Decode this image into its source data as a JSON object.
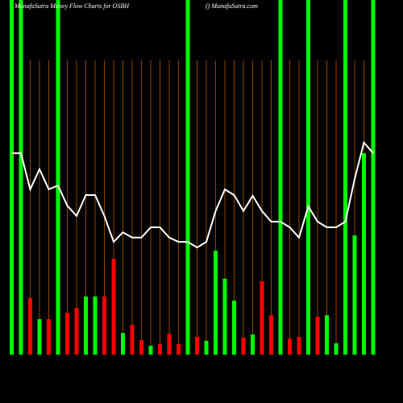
{
  "chart_data": {
    "type": "bar",
    "title": "MunafaSutra Money Flow Charts for OSBH",
    "subtitle": "() MunafaSutra.com",
    "categories": [
      null,
      null,
      null,
      null,
      null,
      null,
      null,
      null,
      null,
      null,
      null,
      null,
      null,
      null,
      null,
      null,
      null,
      null,
      null,
      null,
      null,
      null,
      null,
      null,
      null,
      null,
      null,
      null,
      null,
      null,
      null,
      null,
      null,
      null,
      null,
      null,
      null,
      null,
      null,
      null
    ],
    "ylim": [
      0,
      100
    ],
    "bars": {
      "values": [
        100,
        100,
        15.9,
        10,
        10,
        100,
        11.8,
        13.2,
        16.4,
        16.4,
        16.4,
        27.0,
        6.1,
        8.4,
        4.1,
        2.5,
        3.0,
        5.9,
        3.0,
        100,
        5.0,
        3.9,
        29.3,
        21.4,
        15.2,
        4.8,
        5.7,
        20.7,
        11.1,
        100,
        4.5,
        5.0,
        100,
        10.7,
        11.1,
        3.2,
        100,
        33.6,
        56.8,
        100
      ],
      "colors": [
        "#00ff00",
        "#00ff00",
        "#ff0000",
        "#00ff00",
        "#ff0000",
        "#00ff00",
        "#ff0000",
        "#ff0000",
        "#00ff00",
        "#00ff00",
        "#ff0000",
        "#ff0000",
        "#00ff00",
        "#ff0000",
        "#ff0000",
        "#00ff00",
        "#ff0000",
        "#ff0000",
        "#ff0000",
        "#00ff00",
        "#ff0000",
        "#00ff00",
        "#00ff00",
        "#00ff00",
        "#00ff00",
        "#ff0000",
        "#00ff00",
        "#ff0000",
        "#ff0000",
        "#00ff00",
        "#ff0000",
        "#ff0000",
        "#00ff00",
        "#ff0000",
        "#00ff00",
        "#00ff00",
        "#00ff00",
        "#00ff00",
        "#00ff00",
        "#00ff00"
      ]
    },
    "line": {
      "color": "#ffffff",
      "values": [
        56.8,
        56.8,
        46.6,
        52.3,
        46.6,
        47.7,
        42.0,
        39.1,
        45.0,
        45.0,
        39.1,
        31.8,
        34.5,
        33.0,
        33.0,
        35.9,
        35.9,
        33.0,
        31.8,
        31.8,
        30.2,
        31.8,
        40.5,
        46.6,
        45.0,
        40.5,
        44.8,
        40.5,
        37.5,
        37.5,
        35.9,
        33.0,
        41.8,
        37.5,
        35.9,
        35.9,
        37.5,
        49.5,
        59.8,
        56.8
      ]
    },
    "guide_color": "#8b4a00"
  }
}
